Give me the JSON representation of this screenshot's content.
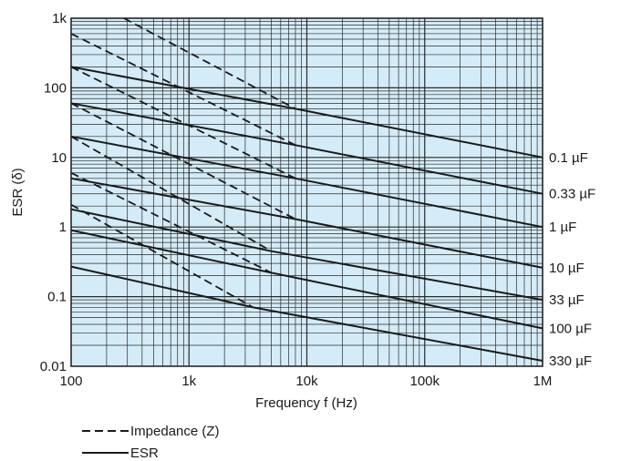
{
  "chart_data": {
    "type": "line",
    "xlabel": "Frequency f (Hz)",
    "ylabel": "ESR (δ)",
    "x_scale": "log",
    "y_scale": "log",
    "xlim": [
      100,
      1000000
    ],
    "ylim": [
      0.01,
      1000
    ],
    "x_ticks": [
      {
        "value": 100,
        "label": "100"
      },
      {
        "value": 1000,
        "label": "1k"
      },
      {
        "value": 10000,
        "label": "10k"
      },
      {
        "value": 100000,
        "label": "100k"
      },
      {
        "value": 1000000,
        "label": "1M"
      }
    ],
    "y_ticks": [
      {
        "value": 0.01,
        "label": "0.01"
      },
      {
        "value": 0.1,
        "label": "0.1"
      },
      {
        "value": 1,
        "label": "1"
      },
      {
        "value": 10,
        "label": "10"
      },
      {
        "value": 100,
        "label": "100"
      },
      {
        "value": 1000,
        "label": "1k"
      }
    ],
    "grid": true,
    "background_color": "#d4ecf7",
    "line_color": "#1a1a1a",
    "legend": {
      "placement": "bottom-left",
      "entries": [
        {
          "style": "dashed",
          "label": "Impedance (Z)"
        },
        {
          "style": "solid",
          "label": "ESR"
        }
      ]
    },
    "esr_series": [
      {
        "name": "0.1 µF",
        "x": [
          100,
          8000,
          1000000
        ],
        "y": [
          200,
          50,
          10
        ]
      },
      {
        "name": "0.33 µF",
        "x": [
          100,
          8000,
          1000000
        ],
        "y": [
          60,
          15,
          3
        ]
      },
      {
        "name": "1 µF",
        "x": [
          100,
          8000,
          1000000
        ],
        "y": [
          20,
          5,
          1
        ]
      },
      {
        "name": "10 µF",
        "x": [
          100,
          8000,
          1000000
        ],
        "y": [
          5,
          1.3,
          0.26
        ]
      },
      {
        "name": "33 µF",
        "x": [
          100,
          5000,
          1000000
        ],
        "y": [
          1.8,
          0.45,
          0.09
        ]
      },
      {
        "name": "100 µF",
        "x": [
          100,
          5000,
          1000000
        ],
        "y": [
          0.9,
          0.22,
          0.035
        ]
      },
      {
        "name": "330 µF",
        "x": [
          100,
          3500,
          1000000
        ],
        "y": [
          0.27,
          0.07,
          0.012
        ]
      }
    ],
    "impedance_series": [
      {
        "for": "0.1 µF",
        "x": [
          280,
          8000
        ],
        "y": [
          1000,
          50
        ]
      },
      {
        "for": "0.33 µF",
        "x": [
          100,
          8000
        ],
        "y": [
          600,
          15
        ]
      },
      {
        "for": "1 µF",
        "x": [
          100,
          8000
        ],
        "y": [
          200,
          5
        ]
      },
      {
        "for": "10 µF",
        "x": [
          100,
          8000
        ],
        "y": [
          60,
          1.3
        ]
      },
      {
        "for": "33 µF",
        "x": [
          100,
          5000
        ],
        "y": [
          20,
          0.45
        ]
      },
      {
        "for": "100 µF",
        "x": [
          100,
          5000
        ],
        "y": [
          6,
          0.22
        ]
      },
      {
        "for": "330 µF",
        "x": [
          100,
          3500
        ],
        "y": [
          2.1,
          0.07
        ]
      }
    ]
  }
}
